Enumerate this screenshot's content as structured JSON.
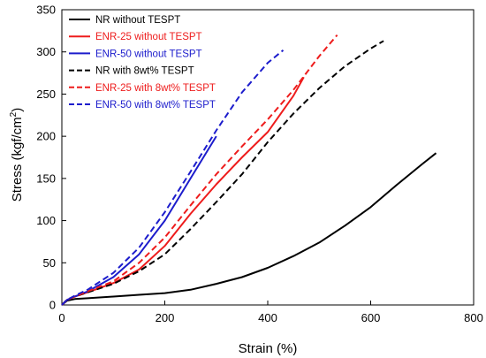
{
  "chart_data": {
    "type": "line",
    "title": "",
    "xlabel": "Strain (%)",
    "ylabel_main": "Stress (kgf/cm",
    "ylabel_sup": "2",
    "ylabel_end": ")",
    "xlim": [
      0,
      800
    ],
    "ylim": [
      0,
      350
    ],
    "xticks": [
      0,
      200,
      400,
      600,
      800
    ],
    "yticks": [
      0,
      50,
      100,
      150,
      200,
      250,
      300,
      350
    ],
    "grid": false,
    "legend_position": "top-left",
    "series": [
      {
        "name": "NR without TESPT",
        "color": "#000000",
        "dash": "solid",
        "x": [
          0,
          10,
          25,
          50,
          100,
          150,
          200,
          250,
          300,
          350,
          400,
          450,
          500,
          550,
          600,
          650,
          700,
          727
        ],
        "y": [
          0,
          5,
          7,
          8,
          10,
          12,
          14,
          18,
          25,
          33,
          44,
          58,
          74,
          94,
          116,
          142,
          167,
          180
        ]
      },
      {
        "name": "ENR-25 without TESPT",
        "color": "#ee1c1c",
        "dash": "solid",
        "x": [
          0,
          10,
          25,
          50,
          100,
          150,
          200,
          250,
          300,
          350,
          400,
          450,
          470
        ],
        "y": [
          0,
          6,
          10,
          15,
          26,
          42,
          70,
          108,
          143,
          175,
          205,
          248,
          270
        ]
      },
      {
        "name": "ENR-50 without TESPT",
        "color": "#1c1ccc",
        "dash": "solid",
        "x": [
          0,
          10,
          25,
          50,
          100,
          150,
          200,
          250,
          300
        ],
        "y": [
          0,
          6,
          10,
          16,
          33,
          60,
          100,
          150,
          200
        ]
      },
      {
        "name": "NR with 8wt% TESPT",
        "color": "#000000",
        "dash": "dashed",
        "x": [
          0,
          10,
          25,
          50,
          100,
          150,
          200,
          250,
          300,
          350,
          400,
          450,
          500,
          550,
          600,
          625
        ],
        "y": [
          0,
          6,
          10,
          15,
          25,
          40,
          60,
          90,
          122,
          155,
          193,
          227,
          257,
          283,
          304,
          313
        ]
      },
      {
        "name": "ENR-25 with 8wt% TESPT",
        "color": "#ee1c1c",
        "dash": "dashed",
        "x": [
          0,
          10,
          25,
          50,
          100,
          150,
          200,
          250,
          300,
          350,
          400,
          450,
          500,
          535
        ],
        "y": [
          0,
          6,
          10,
          16,
          28,
          50,
          80,
          118,
          155,
          188,
          220,
          255,
          295,
          320
        ]
      },
      {
        "name": "ENR-50 with 8wt% TESPT",
        "color": "#1c1ccc",
        "dash": "dashed",
        "x": [
          0,
          10,
          25,
          50,
          100,
          150,
          200,
          250,
          300,
          350,
          400,
          430
        ],
        "y": [
          0,
          6,
          11,
          18,
          38,
          68,
          110,
          158,
          207,
          252,
          287,
          302
        ]
      }
    ]
  }
}
